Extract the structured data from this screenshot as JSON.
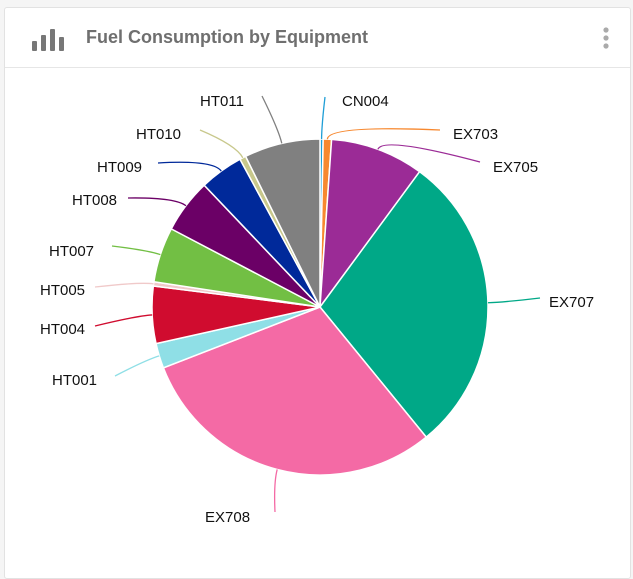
{
  "header": {
    "title": "Fuel Consumption by Equipment",
    "icon": "bar-chart-icon",
    "menu_icon": "more-vertical-icon"
  },
  "chart_data": {
    "type": "pie",
    "title": "Fuel Consumption by Equipment",
    "unit": "percent (estimated)",
    "categories": [
      "CN004",
      "EX703",
      "EX705",
      "EX707",
      "EX708",
      "HT001",
      "HT004",
      "HT005",
      "HT007",
      "HT008",
      "HT009",
      "HT010",
      "HT011"
    ],
    "values": [
      0.3,
      0.8,
      9.0,
      29.0,
      30.0,
      2.4,
      5.5,
      0.4,
      5.3,
      5.2,
      4.2,
      0.6,
      7.3
    ],
    "colors": [
      "#1f9ed6",
      "#f7882f",
      "#9b2b96",
      "#00a887",
      "#f46aa5",
      "#8fdfe6",
      "#d00c2f",
      "#f0c9c9",
      "#72bf44",
      "#6b0066",
      "#00299a",
      "#c8c88c",
      "#808080"
    ],
    "legend": "none (outside labels)"
  }
}
